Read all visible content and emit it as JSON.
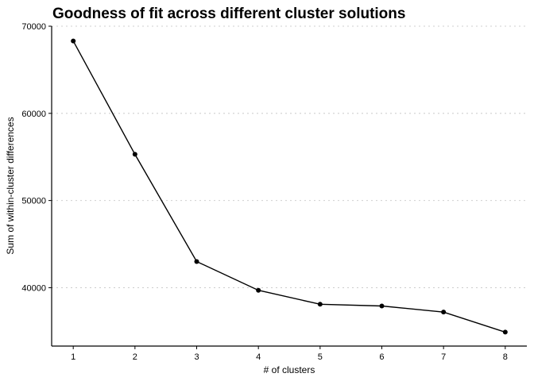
{
  "chart_data": {
    "type": "line",
    "title": "Goodness of fit across different cluster solutions",
    "xlabel": "# of clusters",
    "ylabel": "Sum of within-cluster differences",
    "x": [
      1,
      2,
      3,
      4,
      5,
      6,
      7,
      8
    ],
    "values": [
      68300,
      55300,
      43000,
      39700,
      38100,
      37900,
      37200,
      34900
    ],
    "xticks": [
      "1",
      "2",
      "3",
      "4",
      "5",
      "6",
      "7",
      "8"
    ],
    "yticks": [
      40000,
      50000,
      60000,
      70000
    ],
    "ytick_labels": [
      "40000",
      "50000",
      "60000",
      "70000"
    ],
    "xlim": [
      0.65,
      8.35
    ],
    "ylim": [
      33300,
      70000
    ],
    "grid": "horizontal dotted",
    "colors": {
      "series": "#000000",
      "grid": "#cfcfcf"
    }
  }
}
